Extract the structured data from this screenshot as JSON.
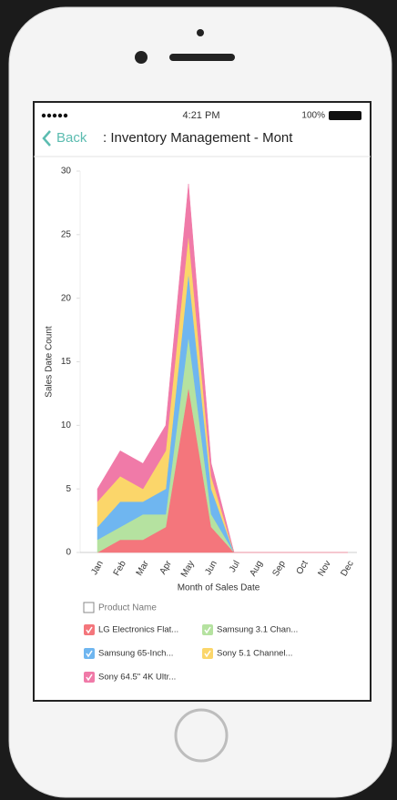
{
  "status_bar": {
    "time": "4:21 PM",
    "battery": "100%"
  },
  "nav_bar": {
    "back": "Back",
    "title": ": Inventory Management - Mont"
  },
  "chart_data": {
    "type": "stacked-area",
    "y_label": "Sales Date Count",
    "x_label": "Month of Sales Date",
    "categories": [
      "Jan",
      "Feb",
      "Mar",
      "Apr",
      "May",
      "Jun",
      "Jul",
      "Aug",
      "Sep",
      "Oct",
      "Nov",
      "Dec"
    ],
    "ylim": [
      0,
      30
    ],
    "yticks": [
      0,
      5,
      10,
      15,
      20,
      25,
      30
    ],
    "grid": false,
    "legend_title": "Product Name",
    "series": [
      {
        "name": "LG Electronics Flat...",
        "color": "#f4767c",
        "values": [
          0,
          1,
          1,
          2,
          13,
          2,
          0,
          0,
          0,
          0,
          0,
          0
        ]
      },
      {
        "name": "Samsung 3.1 Chan...",
        "color": "#b5e2a0",
        "values": [
          1,
          1,
          2,
          1,
          4,
          1,
          0,
          0,
          0,
          0,
          0,
          0
        ]
      },
      {
        "name": "Samsung 65-Inch...",
        "color": "#6fb6f0",
        "values": [
          1,
          2,
          1,
          2,
          5,
          2,
          0,
          0,
          0,
          0,
          0,
          0
        ]
      },
      {
        "name": "Sony 5.1 Channel...",
        "color": "#fbd66a",
        "values": [
          2,
          2,
          1,
          3,
          3,
          1,
          0,
          0,
          0,
          0,
          0,
          0
        ]
      },
      {
        "name": "Sony 64.5\" 4K Ultr...",
        "color": "#f07aa8",
        "values": [
          1,
          2,
          2,
          2,
          4,
          1,
          0,
          0,
          0,
          0,
          0,
          0
        ]
      }
    ]
  }
}
